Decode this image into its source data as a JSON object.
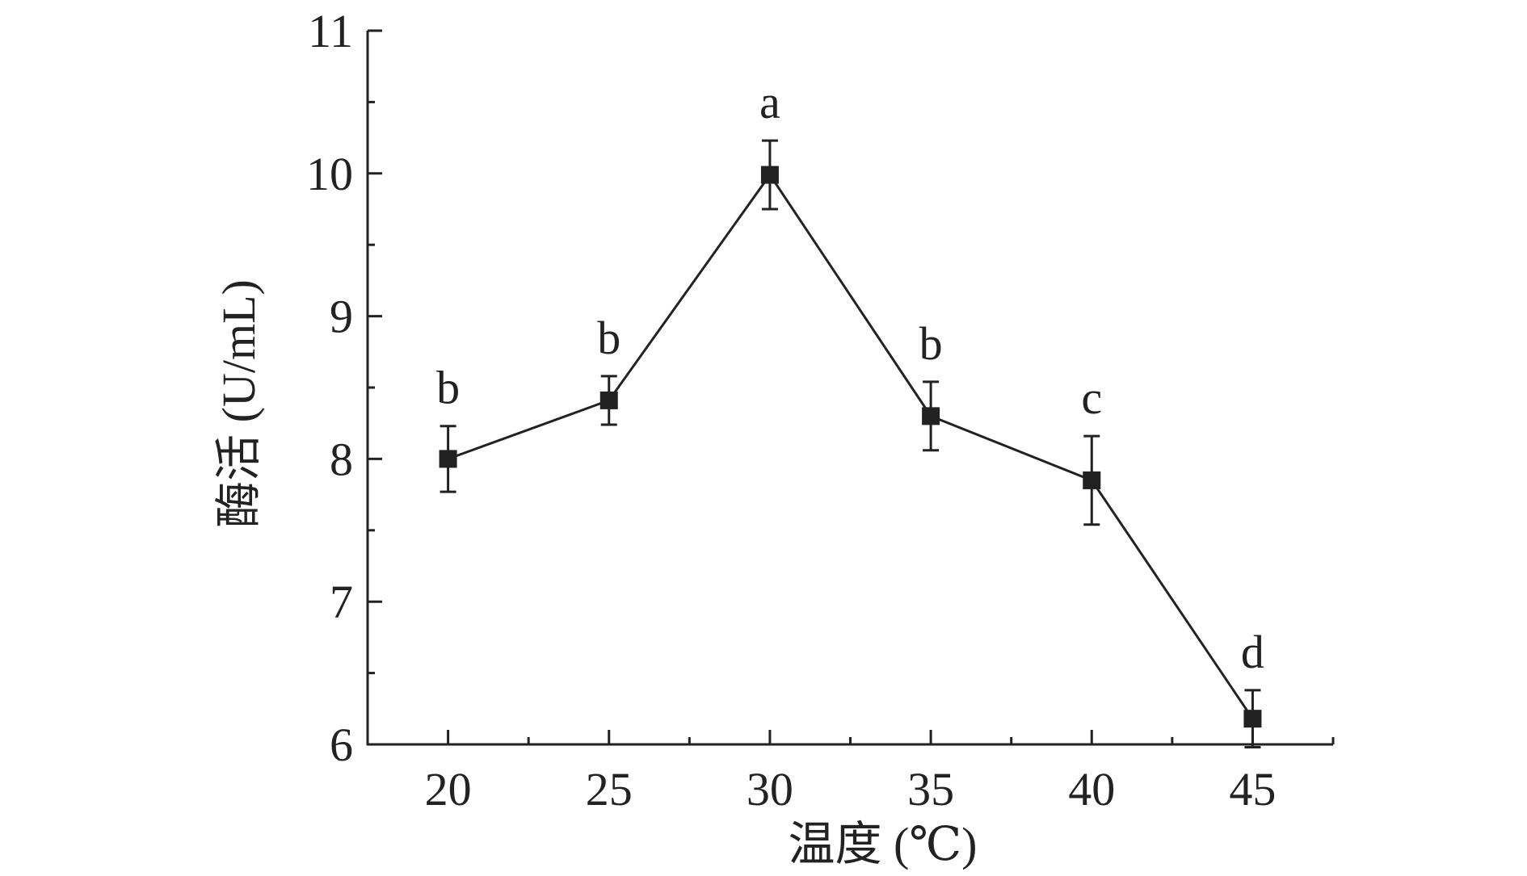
{
  "chart_data": {
    "type": "line",
    "xlabel": "温度 (℃)",
    "ylabel": "酶活 (U/mL)",
    "x_ticks": [
      20,
      25,
      30,
      35,
      40,
      45
    ],
    "x_minor_ticks": [
      22.5,
      27.5,
      32.5,
      37.5,
      42.5,
      47.5
    ],
    "xlim": [
      17.5,
      47.5
    ],
    "y_ticks": [
      6,
      7,
      8,
      9,
      10,
      11
    ],
    "y_minor_ticks": [
      6.5,
      7.5,
      8.5,
      9.5,
      10.5
    ],
    "ylim": [
      6,
      11
    ],
    "grid": false,
    "colors": {
      "line": "#222222",
      "marker": "#222222",
      "axis": "#222222"
    },
    "series": [
      {
        "marker": "square",
        "x": [
          20,
          25,
          30,
          35,
          40,
          45
        ],
        "y": [
          8.0,
          8.41,
          9.99,
          8.3,
          7.85,
          6.18
        ],
        "error": [
          0.23,
          0.17,
          0.24,
          0.24,
          0.31,
          0.2
        ],
        "significance": [
          "b",
          "b",
          "a",
          "b",
          "c",
          "d"
        ]
      }
    ]
  }
}
